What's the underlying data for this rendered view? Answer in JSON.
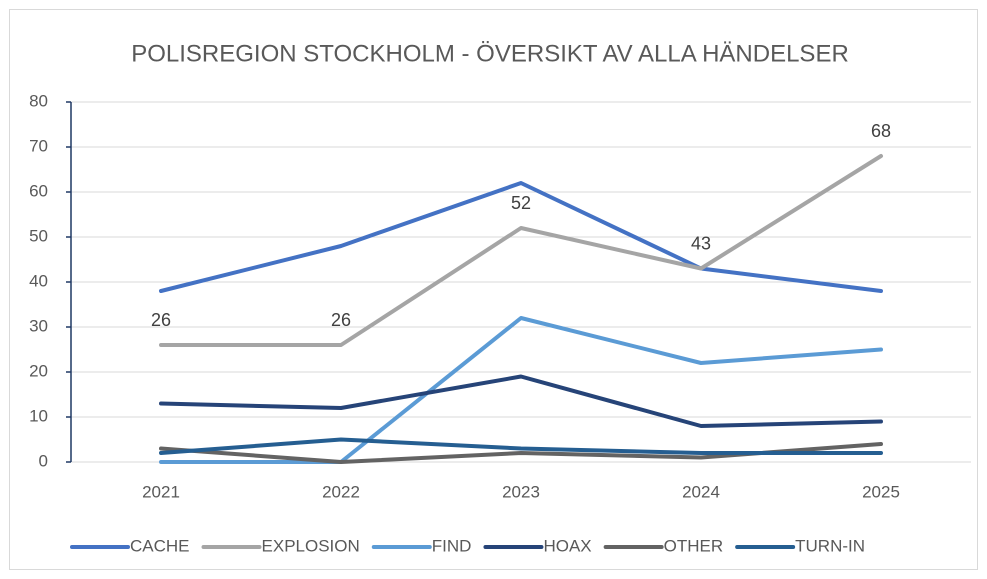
{
  "chart_data": {
    "type": "line",
    "title": "POLISREGION STOCKHOLM - ÖVERSIKT AV ALLA HÄNDELSER",
    "categories": [
      "2021",
      "2022",
      "2023",
      "2024",
      "2025"
    ],
    "series": [
      {
        "name": "CACHE",
        "color": "#4472c4",
        "values": [
          38,
          48,
          62,
          43,
          38
        ]
      },
      {
        "name": "EXPLOSION",
        "color": "#a5a5a5",
        "values": [
          26,
          26,
          52,
          43,
          68
        ],
        "data_labels": true
      },
      {
        "name": "FIND",
        "color": "#5b9bd5",
        "values": [
          0,
          0,
          32,
          22,
          25
        ]
      },
      {
        "name": "HOAX",
        "color": "#264478",
        "values": [
          13,
          12,
          19,
          8,
          9
        ]
      },
      {
        "name": "OTHER",
        "color": "#636363",
        "values": [
          3,
          0,
          2,
          1,
          4
        ]
      },
      {
        "name": "TURN-IN",
        "color": "#255e91",
        "values": [
          2,
          5,
          3,
          2,
          2
        ]
      }
    ],
    "ylim": [
      0,
      80
    ],
    "yticks": [
      0,
      10,
      20,
      30,
      40,
      50,
      60,
      70,
      80
    ],
    "grid": true,
    "legend": "bottom"
  }
}
